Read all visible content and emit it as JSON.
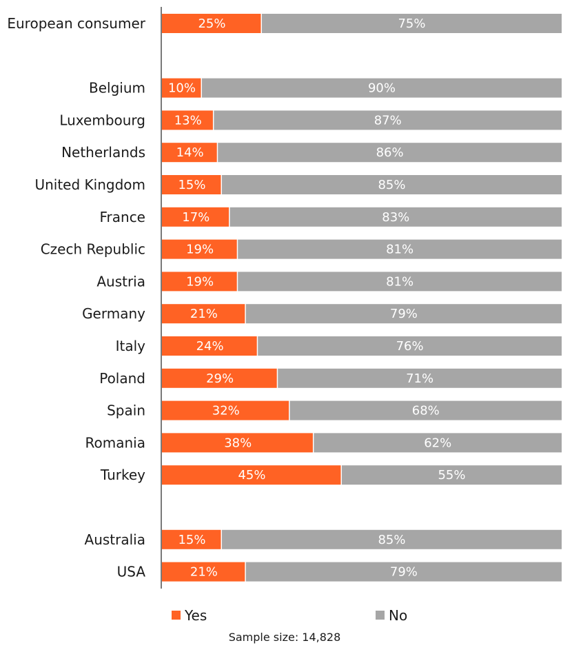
{
  "chart_data": {
    "type": "bar",
    "orientation": "horizontal",
    "stacked": true,
    "normalized": true,
    "categories": [
      "European consumer",
      "Belgium",
      "Luxembourg",
      "Netherlands",
      "United Kingdom",
      "France",
      "Czech Republic",
      "Austria",
      "Germany",
      "Italy",
      "Poland",
      "Spain",
      "Romania",
      "Turkey",
      "Australia",
      "USA"
    ],
    "category_groups": [
      [
        "European consumer"
      ],
      [
        "Belgium",
        "Luxembourg",
        "Netherlands",
        "United Kingdom",
        "France",
        "Czech Republic",
        "Austria",
        "Germany",
        "Italy",
        "Poland",
        "Spain",
        "Romania",
        "Turkey"
      ],
      [
        "Australia",
        "USA"
      ]
    ],
    "series": [
      {
        "name": "Yes",
        "color": "#ff6224",
        "values": [
          25,
          10,
          13,
          14,
          15,
          17,
          19,
          19,
          21,
          24,
          29,
          32,
          38,
          45,
          15,
          21
        ],
        "labels": [
          "25%",
          "10%",
          "13%",
          "14%",
          "15%",
          "17%",
          "19%",
          "19%",
          "21%",
          "24%",
          "29%",
          "32%",
          "38%",
          "45%",
          "15%",
          "21%"
        ]
      },
      {
        "name": "No",
        "color": "#a6a6a6",
        "values": [
          75,
          90,
          87,
          86,
          85,
          83,
          81,
          81,
          79,
          76,
          71,
          68,
          62,
          55,
          85,
          79
        ],
        "labels": [
          "75%",
          "90%",
          "87%",
          "86%",
          "85%",
          "83%",
          "81%",
          "81%",
          "79%",
          "76%",
          "71%",
          "68%",
          "62%",
          "55%",
          "85%",
          "79%"
        ]
      }
    ],
    "xlim": [
      0,
      100
    ],
    "unit": "%",
    "grid": false,
    "legend": {
      "position": "bottom",
      "entries": [
        "Yes",
        "No"
      ]
    },
    "title": "",
    "xlabel": "",
    "ylabel": ""
  },
  "note": "Sample size: 14,828"
}
